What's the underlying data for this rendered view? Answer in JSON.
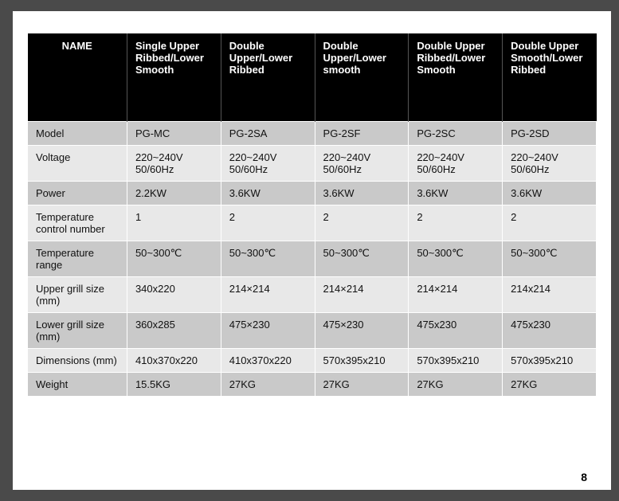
{
  "page_number": "8",
  "table": {
    "background_header": "#000000",
    "text_header": "#ffffff",
    "row_odd_bg": "#c9c9c9",
    "row_even_bg": "#e8e8e8",
    "header_fontsize": 13,
    "cell_fontsize": 13,
    "columns": [
      "NAME",
      "Single Upper Ribbed/Lower Smooth",
      "Double Upper/Lower Ribbed",
      "Double Upper/Lower smooth",
      "Double Upper Ribbed/Lower Smooth",
      "Double Upper Smooth/Lower Ribbed"
    ],
    "rows": [
      {
        "label": "Model",
        "cells": [
          "PG-MC",
          "PG-2SA",
          "PG-2SF",
          "PG-2SC",
          "PG-2SD"
        ]
      },
      {
        "label": "Voltage",
        "cells": [
          "220~240V 50/60Hz",
          "220~240V 50/60Hz",
          "220~240V 50/60Hz",
          "220~240V 50/60Hz",
          "220~240V 50/60Hz"
        ]
      },
      {
        "label": "Power",
        "cells": [
          "2.2KW",
          "3.6KW",
          "3.6KW",
          "3.6KW",
          "3.6KW"
        ]
      },
      {
        "label": "Temperature control number",
        "cells": [
          "1",
          "2",
          "2",
          "2",
          "2"
        ]
      },
      {
        "label": "Temperature range",
        "cells": [
          "50~300℃",
          "50~300℃",
          "50~300℃",
          "50~300℃",
          "50~300℃"
        ]
      },
      {
        "label": "Upper grill size (mm)",
        "cells": [
          "340x220",
          "214×214",
          "214×214",
          "214×214",
          "214x214"
        ]
      },
      {
        "label": "Lower grill size (mm)",
        "cells": [
          "360x285",
          "475×230",
          "475×230",
          "475x230",
          "475x230"
        ]
      },
      {
        "label": "Dimensions (mm)",
        "cells": [
          "410x370x220",
          "410x370x220",
          "570x395x210",
          "570x395x210",
          "570x395x210"
        ]
      },
      {
        "label": "Weight",
        "cells": [
          "15.5KG",
          "27KG",
          "27KG",
          "27KG",
          "27KG"
        ]
      }
    ]
  }
}
